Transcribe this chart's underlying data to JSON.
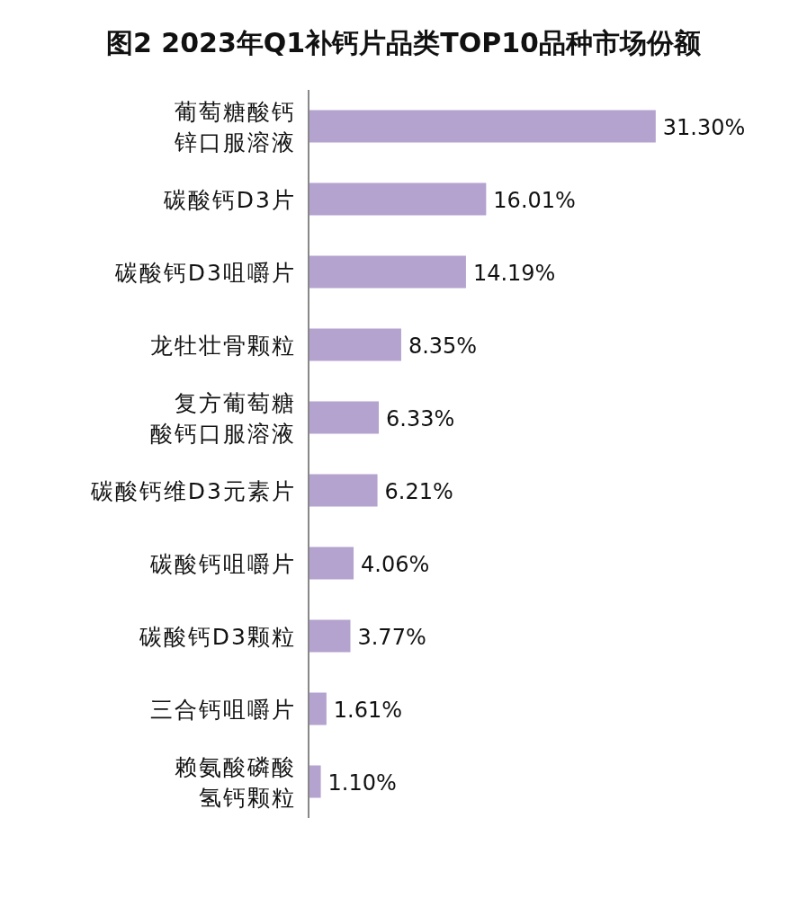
{
  "chart_data": {
    "type": "bar",
    "orientation": "horizontal",
    "title": "图2 2023年Q1补钙片品类TOP10品种市场份额",
    "categories": [
      "葡萄糖酸钙锌口服溶液",
      "碳酸钙D3片",
      "碳酸钙D3咀嚼片",
      "龙牡壮骨颗粒",
      "复方葡萄糖酸钙口服溶液",
      "碳酸钙维D3元素片",
      "碳酸钙咀嚼片",
      "碳酸钙D3颗粒",
      "三合钙咀嚼片",
      "赖氨酸磷酸氢钙颗粒"
    ],
    "values": [
      31.3,
      16.01,
      14.19,
      8.35,
      6.33,
      6.21,
      4.06,
      3.77,
      1.61,
      1.1
    ],
    "value_labels": [
      "31.30%",
      "16.01%",
      "14.19%",
      "8.35%",
      "6.33%",
      "6.21%",
      "4.06%",
      "3.77%",
      "1.61%",
      "1.10%"
    ],
    "color": "#b4a2cf",
    "tick_labels": "y"
  }
}
